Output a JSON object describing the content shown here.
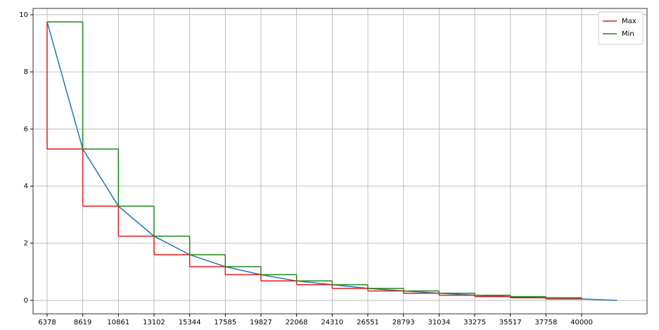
{
  "chart_data": {
    "type": "line",
    "xlim": [
      5493,
      44114
    ],
    "ylim": [
      -0.47,
      10.22
    ],
    "xticks": [
      6378,
      8619,
      10861,
      13102,
      15344,
      17585,
      19827,
      22068,
      24310,
      26551,
      28793,
      31034,
      33275,
      35517,
      37758,
      40000
    ],
    "yticks": [
      0,
      2,
      4,
      6,
      8,
      10
    ],
    "grid": true,
    "legend": "upper right",
    "series": [
      {
        "color": "#1f77b4",
        "drawstyle": "default",
        "x": [
          6378,
          8619,
          10861,
          13102,
          15344,
          17585,
          19827,
          22068,
          24310,
          26551,
          28793,
          31034,
          33275,
          35517,
          37758,
          40000,
          42241
        ],
        "values": [
          9.75,
          5.3,
          3.3,
          2.25,
          1.6,
          1.18,
          0.9,
          0.68,
          0.55,
          0.42,
          0.33,
          0.25,
          0.18,
          0.13,
          0.09,
          0.05,
          0.0
        ]
      },
      {
        "name": "Max",
        "color": "#e41a1c",
        "drawstyle": "steps-pre",
        "x": [
          6378,
          8619,
          10861,
          13102,
          15344,
          17585,
          19827,
          22068,
          24310,
          26551,
          28793,
          31034,
          33275,
          35517,
          37758,
          40000
        ],
        "values": [
          9.75,
          5.3,
          3.3,
          2.25,
          1.6,
          1.18,
          0.9,
          0.68,
          0.55,
          0.42,
          0.33,
          0.25,
          0.18,
          0.13,
          0.09,
          0.05
        ]
      },
      {
        "name": "Min",
        "color": "#1a8a1a",
        "drawstyle": "steps-post",
        "x": [
          6378,
          8619,
          10861,
          13102,
          15344,
          17585,
          19827,
          22068,
          24310,
          26551,
          28793,
          31034,
          33275,
          35517,
          37758,
          40000
        ],
        "values": [
          9.75,
          5.3,
          3.3,
          2.25,
          1.6,
          1.18,
          0.9,
          0.68,
          0.55,
          0.42,
          0.33,
          0.25,
          0.18,
          0.13,
          0.09,
          0.05
        ]
      }
    ]
  }
}
